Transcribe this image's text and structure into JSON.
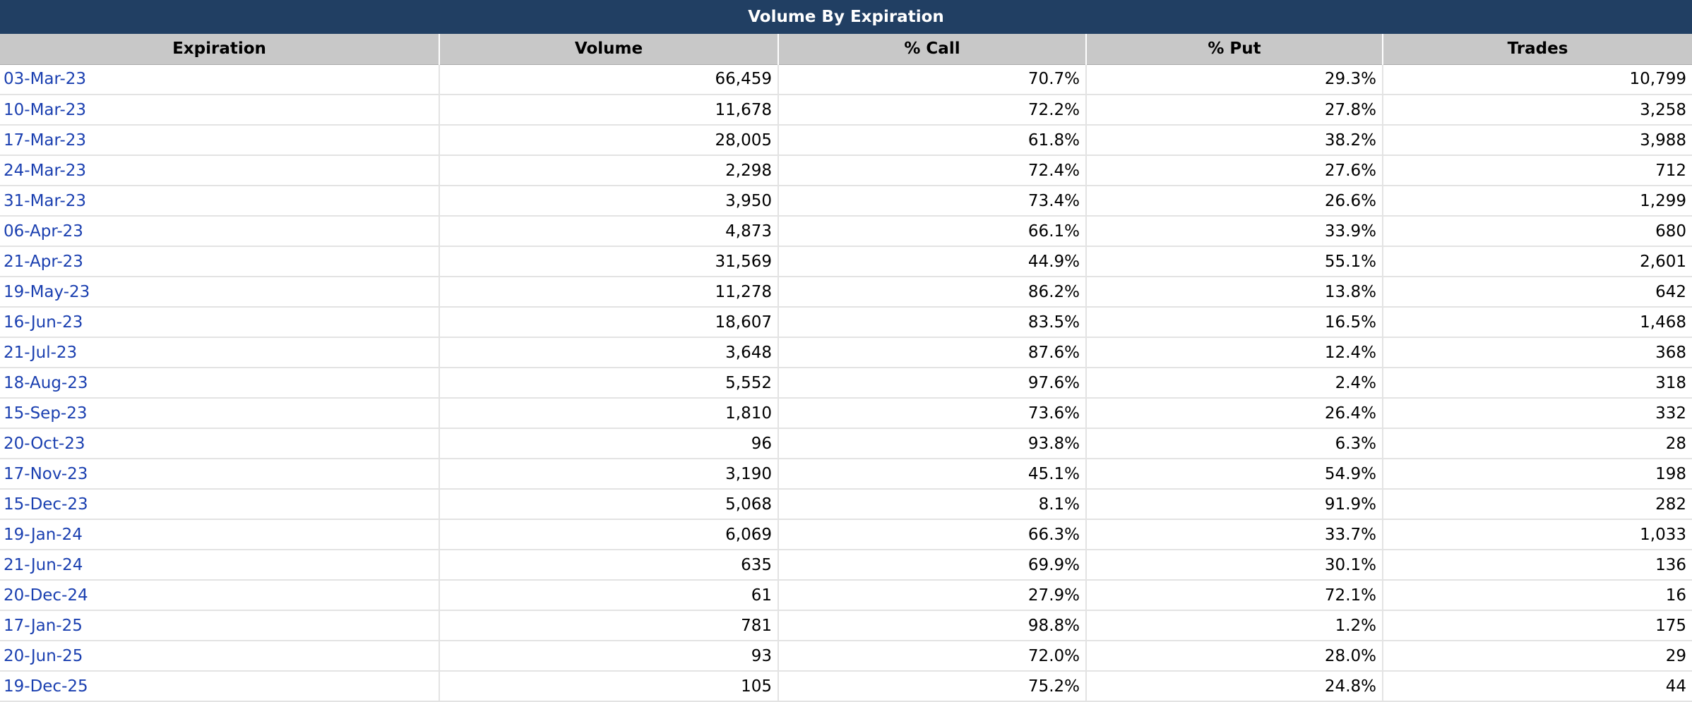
{
  "title": "Volume By Expiration",
  "colors": {
    "title_bg": "#213f63",
    "header_bg": "#c8c8c8",
    "link": "#1a3fb0"
  },
  "columns": [
    "Expiration",
    "Volume",
    "% Call",
    "% Put",
    "Trades"
  ],
  "rows": [
    {
      "expiration": "03-Mar-23",
      "volume": "66,459",
      "pct_call": "70.7%",
      "pct_put": "29.3%",
      "trades": "10,799"
    },
    {
      "expiration": "10-Mar-23",
      "volume": "11,678",
      "pct_call": "72.2%",
      "pct_put": "27.8%",
      "trades": "3,258"
    },
    {
      "expiration": "17-Mar-23",
      "volume": "28,005",
      "pct_call": "61.8%",
      "pct_put": "38.2%",
      "trades": "3,988"
    },
    {
      "expiration": "24-Mar-23",
      "volume": "2,298",
      "pct_call": "72.4%",
      "pct_put": "27.6%",
      "trades": "712"
    },
    {
      "expiration": "31-Mar-23",
      "volume": "3,950",
      "pct_call": "73.4%",
      "pct_put": "26.6%",
      "trades": "1,299"
    },
    {
      "expiration": "06-Apr-23",
      "volume": "4,873",
      "pct_call": "66.1%",
      "pct_put": "33.9%",
      "trades": "680"
    },
    {
      "expiration": "21-Apr-23",
      "volume": "31,569",
      "pct_call": "44.9%",
      "pct_put": "55.1%",
      "trades": "2,601"
    },
    {
      "expiration": "19-May-23",
      "volume": "11,278",
      "pct_call": "86.2%",
      "pct_put": "13.8%",
      "trades": "642"
    },
    {
      "expiration": "16-Jun-23",
      "volume": "18,607",
      "pct_call": "83.5%",
      "pct_put": "16.5%",
      "trades": "1,468"
    },
    {
      "expiration": "21-Jul-23",
      "volume": "3,648",
      "pct_call": "87.6%",
      "pct_put": "12.4%",
      "trades": "368"
    },
    {
      "expiration": "18-Aug-23",
      "volume": "5,552",
      "pct_call": "97.6%",
      "pct_put": "2.4%",
      "trades": "318"
    },
    {
      "expiration": "15-Sep-23",
      "volume": "1,810",
      "pct_call": "73.6%",
      "pct_put": "26.4%",
      "trades": "332"
    },
    {
      "expiration": "20-Oct-23",
      "volume": "96",
      "pct_call": "93.8%",
      "pct_put": "6.3%",
      "trades": "28"
    },
    {
      "expiration": "17-Nov-23",
      "volume": "3,190",
      "pct_call": "45.1%",
      "pct_put": "54.9%",
      "trades": "198"
    },
    {
      "expiration": "15-Dec-23",
      "volume": "5,068",
      "pct_call": "8.1%",
      "pct_put": "91.9%",
      "trades": "282"
    },
    {
      "expiration": "19-Jan-24",
      "volume": "6,069",
      "pct_call": "66.3%",
      "pct_put": "33.7%",
      "trades": "1,033"
    },
    {
      "expiration": "21-Jun-24",
      "volume": "635",
      "pct_call": "69.9%",
      "pct_put": "30.1%",
      "trades": "136"
    },
    {
      "expiration": "20-Dec-24",
      "volume": "61",
      "pct_call": "27.9%",
      "pct_put": "72.1%",
      "trades": "16"
    },
    {
      "expiration": "17-Jan-25",
      "volume": "781",
      "pct_call": "98.8%",
      "pct_put": "1.2%",
      "trades": "175"
    },
    {
      "expiration": "20-Jun-25",
      "volume": "93",
      "pct_call": "72.0%",
      "pct_put": "28.0%",
      "trades": "29"
    },
    {
      "expiration": "19-Dec-25",
      "volume": "105",
      "pct_call": "75.2%",
      "pct_put": "24.8%",
      "trades": "44"
    }
  ]
}
